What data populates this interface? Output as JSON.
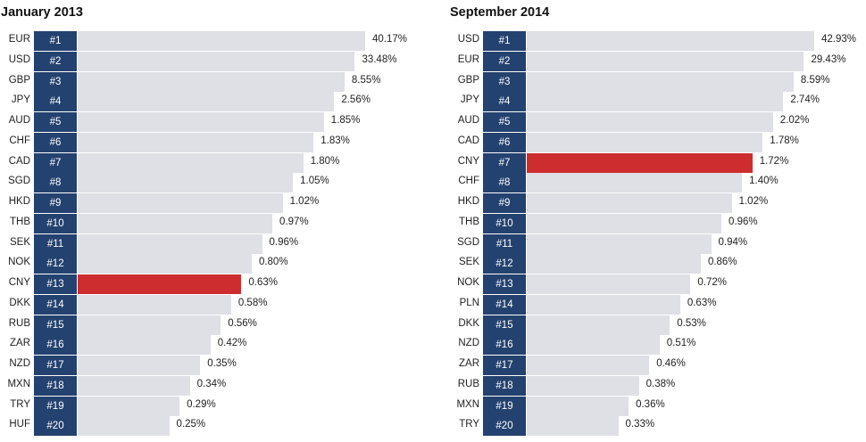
{
  "colors": {
    "rank_bg": "#24426f",
    "bar": "#dfdfe6",
    "highlight": "#cd2d2f"
  },
  "chart_data": [
    {
      "type": "bar",
      "orientation": "horizontal",
      "title": "January 2013",
      "highlight": "CNY",
      "categories": [
        "EUR",
        "USD",
        "GBP",
        "JPY",
        "AUD",
        "CHF",
        "CAD",
        "SGD",
        "HKD",
        "THB",
        "SEK",
        "NOK",
        "CNY",
        "DKK",
        "RUB",
        "ZAR",
        "NZD",
        "MXN",
        "TRY",
        "HUF"
      ],
      "ranks": [
        "#1",
        "#2",
        "#3",
        "#4",
        "#5",
        "#6",
        "#7",
        "#8",
        "#9",
        "#10",
        "#11",
        "#12",
        "#13",
        "#14",
        "#15",
        "#16",
        "#17",
        "#18",
        "#19",
        "#20"
      ],
      "labels": [
        "40.17%",
        "33.48%",
        "8.55%",
        "2.56%",
        "1.85%",
        "1.83%",
        "1.80%",
        "1.05%",
        "1.02%",
        "0.97%",
        "0.96%",
        "0.80%",
        "0.63%",
        "0.58%",
        "0.56%",
        "0.42%",
        "0.35%",
        "0.34%",
        "0.29%",
        "0.25%"
      ],
      "values": [
        40.17,
        33.48,
        8.55,
        2.56,
        1.85,
        1.83,
        1.8,
        1.05,
        1.02,
        0.97,
        0.96,
        0.8,
        0.63,
        0.58,
        0.56,
        0.42,
        0.35,
        0.34,
        0.29,
        0.25
      ],
      "scale": "non-linear (bar lengths decrease stepwise by rank)"
    },
    {
      "type": "bar",
      "orientation": "horizontal",
      "title": "September 2014",
      "highlight": "CNY",
      "categories": [
        "USD",
        "EUR",
        "GBP",
        "JPY",
        "AUD",
        "CAD",
        "CNY",
        "CHF",
        "HKD",
        "THB",
        "SGD",
        "SEK",
        "NOK",
        "PLN",
        "DKK",
        "NZD",
        "ZAR",
        "RUB",
        "MXN",
        "TRY"
      ],
      "ranks": [
        "#1",
        "#2",
        "#3",
        "#4",
        "#5",
        "#6",
        "#7",
        "#8",
        "#9",
        "#10",
        "#11",
        "#12",
        "#13",
        "#14",
        "#15",
        "#16",
        "#17",
        "#18",
        "#19",
        "#20"
      ],
      "labels": [
        "42.93%",
        "29.43%",
        "8.59%",
        "2.74%",
        "2.02%",
        "1.78%",
        "1.72%",
        "1.40%",
        "1.02%",
        "0.96%",
        "0.94%",
        "0.86%",
        "0.72%",
        "0.63%",
        "0.53%",
        "0.51%",
        "0.46%",
        "0.38%",
        "0.36%",
        "0.33%"
      ],
      "values": [
        42.93,
        29.43,
        8.59,
        2.74,
        2.02,
        1.78,
        1.72,
        1.4,
        1.02,
        0.96,
        0.94,
        0.86,
        0.72,
        0.63,
        0.53,
        0.51,
        0.46,
        0.38,
        0.36,
        0.33
      ],
      "scale": "non-linear (bar lengths decrease stepwise by rank)"
    }
  ]
}
